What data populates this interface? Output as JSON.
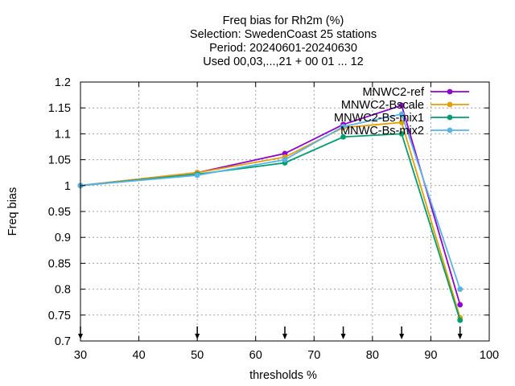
{
  "chart_data": {
    "type": "line",
    "title_lines": [
      "Freq bias  for Rh2m (%)",
      "Selection: SwedenCoast      25 stations",
      "Period: 20240601-20240630",
      "Used 00,03,...,21 + 00 01 ... 12"
    ],
    "xlabel": "thresholds %",
    "ylabel": "Freq bias",
    "xlim": [
      30,
      100
    ],
    "ylim": [
      0.7,
      1.2
    ],
    "xticks": [
      30,
      40,
      50,
      60,
      70,
      80,
      90,
      100
    ],
    "yticks": [
      0.7,
      0.75,
      0.8,
      0.85,
      0.9,
      0.95,
      1,
      1.05,
      1.1,
      1.15,
      1.2
    ],
    "ytick_labels": [
      "0.7",
      "0.75",
      "0.8",
      "0.85",
      "0.9",
      "0.95",
      "1",
      "1.05",
      "1.1",
      "1.15",
      "1.2"
    ],
    "grid": true,
    "legend_position": "top-right",
    "threshold_markers": [
      30,
      50,
      65,
      75,
      85,
      95
    ],
    "x": [
      30,
      50,
      65,
      75,
      85,
      95
    ],
    "series": [
      {
        "name": "MNWC2-ref",
        "color": "#9400d3",
        "values": [
          1.0,
          1.025,
          1.062,
          1.118,
          1.155,
          0.77
        ]
      },
      {
        "name": "MNWC2-Bscale",
        "color": "#e69f00",
        "values": [
          1.0,
          1.025,
          1.055,
          1.112,
          1.122,
          0.745
        ]
      },
      {
        "name": "MNWC2-Bs-mix1",
        "color": "#009e73",
        "values": [
          1.0,
          1.022,
          1.044,
          1.094,
          1.1,
          0.74
        ]
      },
      {
        "name": "MNWC-Bs-mix2",
        "color": "#56b4e9",
        "values": [
          1.0,
          1.02,
          1.05,
          1.114,
          1.138,
          0.8
        ]
      }
    ]
  }
}
